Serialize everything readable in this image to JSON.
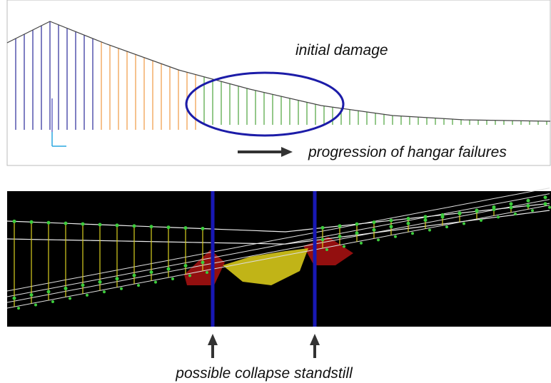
{
  "top_panel": {
    "annotation": "initial damage",
    "arrow_label": "progression of hangar failures"
  },
  "bottom_panel": {
    "caption": "possible collapse standstill"
  }
}
